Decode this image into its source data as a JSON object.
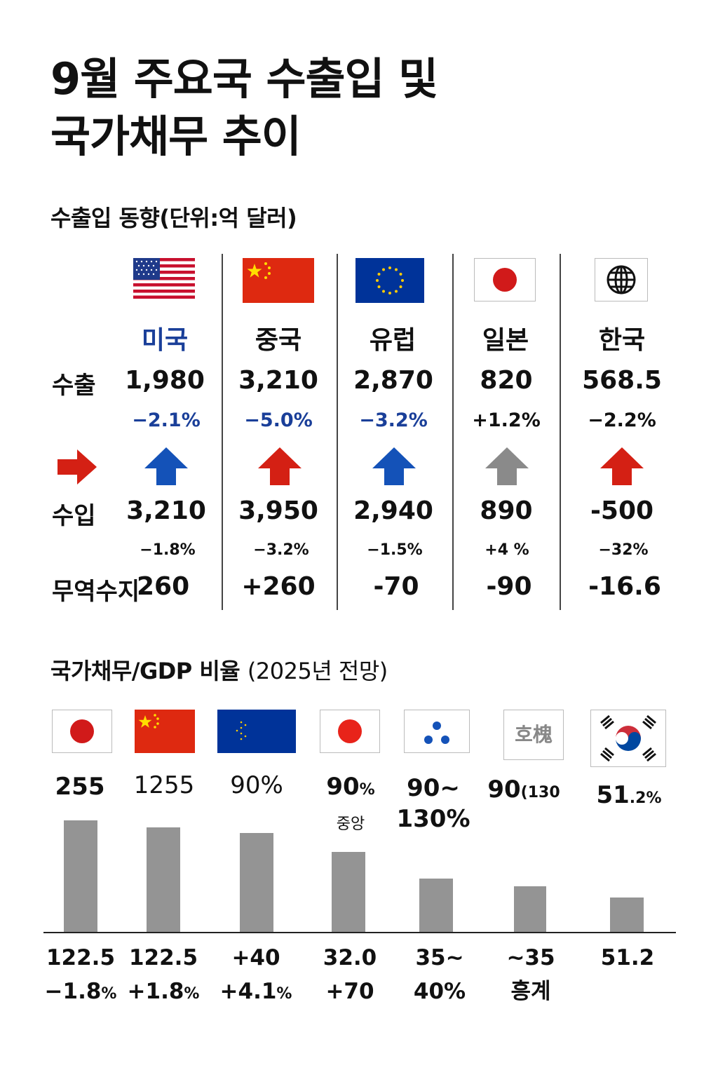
{
  "title_line1": "9월 주요국 수출입 및",
  "title_line2": "국가채무 추이",
  "trade": {
    "heading": "수출입 동향(단위:억 달러)",
    "row_labels": {
      "export": "수출",
      "import": "수입",
      "balance": "무역수지"
    },
    "countries": [
      {
        "name": "미국",
        "flag": "us-flag",
        "export": "1,980",
        "export_change": "−2.1%",
        "import": "3,210",
        "import_change": "−1.8%",
        "balance": "260",
        "arrow": "up",
        "arrow_color": "#1452b8"
      },
      {
        "name": "중국",
        "flag": "china-flag",
        "export": "3,210",
        "export_change": "−5.0%",
        "import": "3,950",
        "import_change": "−3.2%",
        "balance": "+260",
        "arrow": "up",
        "arrow_color": "#d42014"
      },
      {
        "name": "유럽",
        "flag": "eu-flag",
        "export": "2,870",
        "export_change": "−3.2%",
        "import": "2,940",
        "import_change": "−1.5%",
        "balance": "-70",
        "arrow": "up",
        "arrow_color": "#1452b8"
      },
      {
        "name": "일본",
        "flag": "japan-flag",
        "export": "820",
        "export_change": "+1.2%",
        "import": "890",
        "import_change": "+4 %",
        "balance": "-90",
        "arrow": "up",
        "arrow_color": "#8a8a8a"
      },
      {
        "name": "한국",
        "flag": "globe-icon",
        "export": "568.5",
        "export_change": "−2.2%",
        "import": "-500",
        "import_change": "−32%",
        "balance": "-16.6",
        "arrow": "up",
        "arrow_color": "#d42014"
      }
    ],
    "side_arrow": {
      "direction": "right",
      "color": "#d42014"
    }
  },
  "debt": {
    "heading": "국가채무/GDP 비율",
    "heading_note": "(2025년 전망)",
    "flags": [
      "japan-flag",
      "china-flag",
      "eu-flag",
      "japan-flag",
      "dots-logo",
      "text-logo",
      "korea-flag"
    ],
    "logo_text": "호槐",
    "top_labels": [
      {
        "main": "255",
        "small": "",
        "second": ""
      },
      {
        "main": "1255",
        "small": "",
        "second": ""
      },
      {
        "main": "90%",
        "small": "",
        "second": ""
      },
      {
        "main": "90",
        "small": "%",
        "second": "중앙"
      },
      {
        "main": "90~",
        "small": "",
        "second": "130%"
      },
      {
        "main": "90",
        "small": "(130",
        "second": ""
      },
      {
        "main": "51",
        "small": ".2%",
        "second": ""
      }
    ],
    "bottom_labels": [
      {
        "line1": "122.5",
        "line2": "−1.8",
        "line2_small": "%"
      },
      {
        "line1": "122.5",
        "line2": "+1.8",
        "line2_small": "%"
      },
      {
        "line1": "+40",
        "line2": "+4.1",
        "line2_small": "%"
      },
      {
        "line1": "32.0",
        "line2": "+70",
        "line2_small": ""
      },
      {
        "line1": "35~",
        "line2": "40%",
        "line2_small": ""
      },
      {
        "line1": "~35",
        "line2": "흥계",
        "line2_small": ""
      },
      {
        "line1": "51.2",
        "line2": "",
        "line2_small": ""
      }
    ]
  },
  "chart_data": {
    "type": "bar",
    "categories": [
      "255",
      "1255",
      "90%",
      "90%",
      "90~130%",
      "90(130",
      "51.2%"
    ],
    "values": [
      122.5,
      115,
      109,
      88,
      59,
      50,
      38
    ],
    "ylim": [
      0,
      125
    ],
    "grid": false,
    "bar_color": "#949494"
  }
}
